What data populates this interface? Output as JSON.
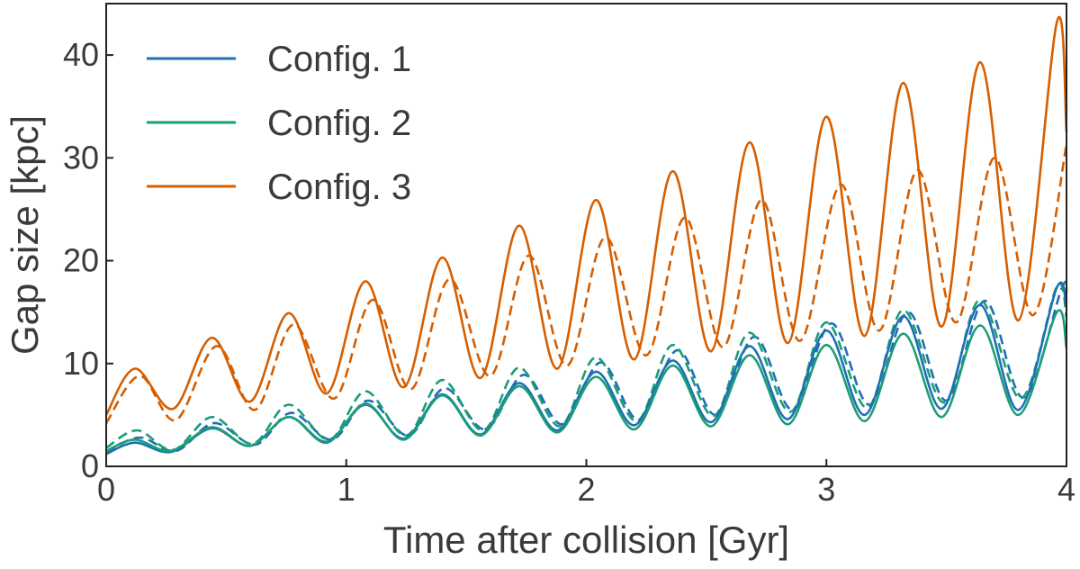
{
  "chart_data": {
    "type": "line",
    "title": "",
    "xlabel": "Time after collision [Gyr]",
    "ylabel": "Gap size [kpc]",
    "xlim": [
      0,
      4
    ],
    "ylim": [
      0,
      45
    ],
    "xticks": [
      0,
      1,
      2,
      3,
      4
    ],
    "yticks": [
      0,
      10,
      20,
      30,
      40
    ],
    "xtick_labels": [
      "0",
      "1",
      "2",
      "3",
      "4"
    ],
    "ytick_labels": [
      "0",
      "10",
      "20",
      "30",
      "40"
    ],
    "grid": false,
    "legend_position": "top-left",
    "series": [
      {
        "name": "Config. 1",
        "color": "#1f6fb4",
        "style": "solid",
        "x": [
          0,
          0.12,
          0.27,
          0.44,
          0.6,
          0.76,
          0.92,
          1.08,
          1.24,
          1.4,
          1.56,
          1.72,
          1.88,
          2.04,
          2.2,
          2.36,
          2.52,
          2.68,
          2.84,
          3.0,
          3.16,
          3.32,
          3.48,
          3.64,
          3.8,
          3.96,
          4.0
        ],
        "y": [
          1.2,
          2.3,
          1.4,
          3.7,
          2.0,
          4.8,
          2.4,
          6.0,
          2.7,
          7.0,
          3.1,
          8.1,
          3.5,
          9.2,
          4.0,
          10.3,
          4.3,
          11.7,
          4.6,
          13.2,
          5.0,
          14.6,
          5.6,
          15.7,
          5.5,
          17.4,
          15.5
        ]
      },
      {
        "name": "",
        "color": "#1f6fb4",
        "style": "dashed",
        "x": [
          0,
          0.14,
          0.29,
          0.45,
          0.62,
          0.77,
          0.94,
          1.09,
          1.26,
          1.41,
          1.58,
          1.74,
          1.9,
          2.06,
          2.22,
          2.38,
          2.54,
          2.7,
          2.86,
          3.02,
          3.18,
          3.34,
          3.5,
          3.66,
          3.82,
          3.98,
          4.0
        ],
        "y": [
          1.4,
          2.8,
          1.5,
          4.2,
          2.1,
          5.2,
          2.6,
          6.4,
          3.0,
          7.6,
          3.6,
          8.9,
          4.1,
          10.1,
          4.5,
          11.3,
          5.0,
          12.6,
          5.5,
          13.9,
          6.0,
          15.0,
          6.4,
          16.1,
          6.7,
          17.3,
          16.8
        ]
      },
      {
        "name": "Config. 2",
        "color": "#1a9e77",
        "style": "solid",
        "x": [
          0,
          0.12,
          0.27,
          0.44,
          0.6,
          0.76,
          0.92,
          1.08,
          1.24,
          1.4,
          1.56,
          1.72,
          1.88,
          2.04,
          2.2,
          2.36,
          2.52,
          2.68,
          2.84,
          3.0,
          3.16,
          3.32,
          3.48,
          3.64,
          3.8,
          3.96,
          4.0
        ],
        "y": [
          1.5,
          2.6,
          1.5,
          3.8,
          2.0,
          4.8,
          2.3,
          6.1,
          2.6,
          6.9,
          3.0,
          7.8,
          3.3,
          8.7,
          3.6,
          9.8,
          3.9,
          10.8,
          4.1,
          11.8,
          4.4,
          12.9,
          4.8,
          13.7,
          5.0,
          15.0,
          11.5
        ]
      },
      {
        "name": "",
        "color": "#1a9e77",
        "style": "dashed",
        "x": [
          0,
          0.13,
          0.28,
          0.44,
          0.61,
          0.76,
          0.93,
          1.08,
          1.25,
          1.4,
          1.57,
          1.72,
          1.89,
          2.04,
          2.21,
          2.36,
          2.53,
          2.68,
          2.85,
          3.0,
          3.17,
          3.32,
          3.49,
          3.64,
          3.81,
          3.96,
          4.0
        ],
        "y": [
          1.8,
          3.5,
          1.6,
          4.8,
          2.2,
          6.0,
          2.6,
          7.3,
          3.0,
          8.4,
          3.5,
          9.6,
          3.9,
          10.6,
          4.4,
          11.8,
          4.9,
          13.0,
          5.3,
          14.0,
          5.7,
          15.2,
          6.2,
          16.2,
          6.6,
          17.5,
          14.5
        ]
      },
      {
        "name": "Config. 3",
        "color": "#d55e00",
        "style": "solid",
        "x": [
          0,
          0.12,
          0.28,
          0.44,
          0.6,
          0.76,
          0.92,
          1.08,
          1.24,
          1.4,
          1.56,
          1.72,
          1.88,
          2.04,
          2.2,
          2.36,
          2.52,
          2.68,
          2.84,
          3.0,
          3.16,
          3.32,
          3.48,
          3.64,
          3.8,
          3.96,
          4.0
        ],
        "y": [
          5.0,
          9.5,
          5.6,
          12.5,
          6.3,
          14.9,
          7.1,
          18.0,
          7.7,
          20.3,
          8.6,
          23.4,
          9.5,
          25.9,
          10.4,
          28.7,
          11.2,
          31.5,
          12.0,
          34.0,
          12.7,
          37.3,
          13.6,
          39.3,
          14.2,
          43.2,
          32.5
        ]
      },
      {
        "name": "",
        "color": "#d55e00",
        "style": "dashed",
        "x": [
          0,
          0.14,
          0.29,
          0.46,
          0.62,
          0.78,
          0.95,
          1.11,
          1.27,
          1.43,
          1.6,
          1.76,
          1.92,
          2.08,
          2.25,
          2.41,
          2.57,
          2.73,
          2.89,
          3.06,
          3.22,
          3.38,
          3.54,
          3.7,
          3.86,
          4.0
        ],
        "y": [
          4.2,
          8.8,
          4.5,
          11.7,
          5.5,
          13.8,
          6.6,
          16.2,
          7.5,
          18.2,
          8.8,
          20.5,
          9.8,
          22.3,
          10.8,
          24.2,
          11.6,
          25.9,
          12.2,
          27.4,
          13.2,
          28.8,
          14.0,
          30.0,
          14.7,
          31.3
        ]
      }
    ]
  }
}
